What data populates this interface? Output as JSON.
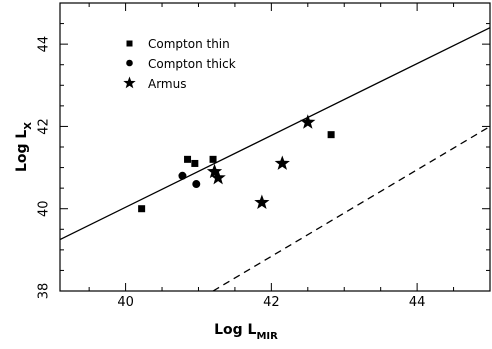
{
  "chart_data": {
    "type": "scatter",
    "title": "",
    "xlabel": "Log L",
    "xlabel_sub": "MIR",
    "ylabel": "Log L",
    "ylabel_sub": "X",
    "xlim": [
      39.1,
      45.0
    ],
    "ylim": [
      38.0,
      45.0
    ],
    "x_ticks": [
      40,
      42,
      44
    ],
    "y_ticks": [
      38,
      40,
      42,
      44
    ],
    "x_tick_labels": [
      "40",
      "42",
      "44"
    ],
    "y_tick_labels": [
      "38",
      "40",
      "42",
      "44"
    ],
    "grid": false,
    "legend_position": "top-left",
    "series": [
      {
        "name": "Compton thin",
        "marker": "square",
        "points": [
          {
            "x": 40.22,
            "y": 40.0
          },
          {
            "x": 40.85,
            "y": 41.2
          },
          {
            "x": 40.95,
            "y": 41.1
          },
          {
            "x": 41.2,
            "y": 41.2
          },
          {
            "x": 42.82,
            "y": 41.8
          }
        ]
      },
      {
        "name": "Compton thick",
        "marker": "circle",
        "points": [
          {
            "x": 40.78,
            "y": 40.8
          },
          {
            "x": 40.97,
            "y": 40.6
          }
        ]
      },
      {
        "name": "Armus",
        "marker": "star",
        "points": [
          {
            "x": 41.22,
            "y": 40.9
          },
          {
            "x": 41.27,
            "y": 40.75
          },
          {
            "x": 41.87,
            "y": 40.15
          },
          {
            "x": 42.15,
            "y": 41.1
          },
          {
            "x": 42.5,
            "y": 42.1
          }
        ]
      }
    ],
    "lines": [
      {
        "style": "solid",
        "x": [
          39.1,
          45.0
        ],
        "y": [
          39.25,
          44.4
        ]
      },
      {
        "style": "dashed",
        "x": [
          41.2,
          45.0
        ],
        "y": [
          38.0,
          42.0
        ]
      }
    ]
  }
}
